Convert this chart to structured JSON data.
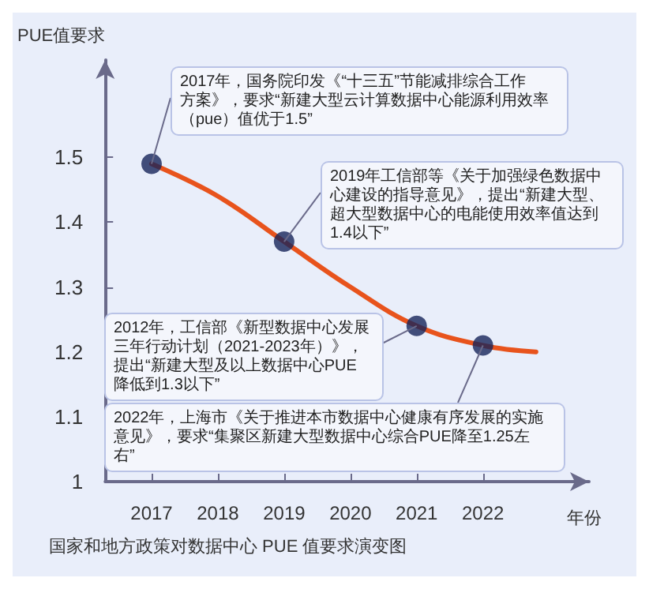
{
  "chart_data": {
    "type": "line",
    "title": "国家和地方政策对数据中心 PUE 值要求演变图",
    "xlabel": "年份",
    "ylabel": "PUE值要求",
    "xlim": [
      2016.3,
      2023.6
    ],
    "xticks": [
      2017,
      2018,
      2019,
      2020,
      2021,
      2022
    ],
    "ylim": [
      1,
      1.65
    ],
    "yticks": [
      1,
      1.1,
      1.2,
      1.3,
      1.4,
      1.5
    ],
    "grid": false,
    "series": [
      {
        "type": "line",
        "color": "#e8531c",
        "marker": "none",
        "x": [
          2017,
          2018,
          2019,
          2020,
          2021,
          2022,
          2022.8
        ],
        "values": [
          1.49,
          1.44,
          1.37,
          1.3,
          1.24,
          1.21,
          1.2
        ]
      },
      {
        "type": "scatter",
        "color": "#17245a",
        "marker": "circle",
        "x": [
          2017,
          2019,
          2021,
          2022
        ],
        "values": [
          1.49,
          1.37,
          1.24,
          1.21
        ]
      }
    ],
    "annotations": [
      {
        "text": "2017年，国务院印发《“十三五”节能减排综合工作方案》，要求“新建大型云计算数据中心能源利用效率（pue）值优于1.5”",
        "x": 2017,
        "y": 1.49
      },
      {
        "text": "2019年工信部等《关于加强绿色数据中心建设的指导意见》，提出“新建大型、超大型数据中心的电能使用效率值达到1.4以下”",
        "x": 2019,
        "y": 1.37
      },
      {
        "text": "2012年，工信部《新型数据中心发展三年行动计划（2021-2023年）》，提出“新建大型及以上数据中心PUE降低到1.3以下”",
        "x": 2021,
        "y": 1.24
      },
      {
        "text": "2022年，上海市《关于推进本市数据中心健康有序发展的实施意见》，要求“集聚区新建大型数据中心综合PUE降至1.25左右”",
        "x": 2022,
        "y": 1.21
      }
    ]
  }
}
